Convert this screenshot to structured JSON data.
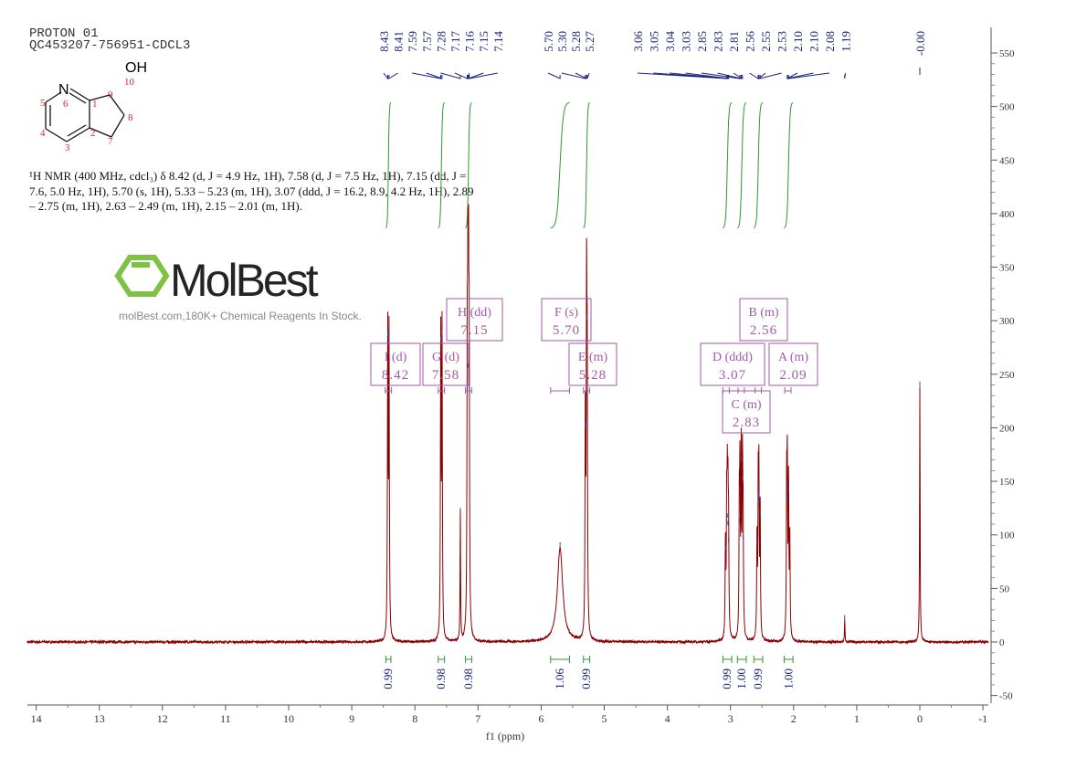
{
  "header": {
    "line1": "PROTON 01",
    "line2": "QC453207-756951-CDCL3"
  },
  "structure": {
    "atoms": [
      {
        "symbol": "N",
        "num": "6"
      },
      {
        "symbol": "",
        "num": "1"
      },
      {
        "symbol": "",
        "num": "2"
      },
      {
        "symbol": "",
        "num": "3"
      },
      {
        "symbol": "",
        "num": "4"
      },
      {
        "symbol": "",
        "num": "5"
      },
      {
        "symbol": "",
        "num": "7"
      },
      {
        "symbol": "",
        "num": "8"
      },
      {
        "symbol": "",
        "num": "9"
      },
      {
        "symbol": "OH",
        "num": "10"
      }
    ]
  },
  "description": {
    "lines": [
      "¹H NMR (400 MHz, cdcl₃) δ 8.42 (d, J = 4.9 Hz, 1H), 7.58 (d, J = 7.5 Hz, 1H), 7.15 (dd, J =",
      "7.6, 5.0 Hz, 1H), 5.70 (s, 1H), 5.33 – 5.23 (m, 1H), 3.07 (ddd, J = 16.2, 8.9, 4.2 Hz, 1H), 2.89",
      "– 2.75 (m, 1H), 2.63 – 2.49 (m, 1H), 2.15 – 2.01 (m, 1H)."
    ]
  },
  "watermark": {
    "brand": "MolBest",
    "tagline": "molBest.com,180K+ Chemical Reagents In Stock.",
    "color": "#7dc242"
  },
  "colors": {
    "spectrum": "#8b0000",
    "integral": "#2e9a2e",
    "peak_label": "#1a237e",
    "multiplet_box": "#a05aa8"
  },
  "chart_data": {
    "type": "line",
    "xlabel": "f1 (ppm)",
    "xlim": [
      14.1,
      -1.05
    ],
    "ylim": [
      -50,
      560
    ],
    "x_ticks": [
      "14",
      "13",
      "12",
      "11",
      "10",
      "9",
      "8",
      "7",
      "6",
      "5",
      "4",
      "3",
      "2",
      "1",
      "0",
      "-1"
    ],
    "y_ticks": [
      "550",
      "500",
      "450",
      "400",
      "350",
      "300",
      "250",
      "200",
      "150",
      "100",
      "50",
      "0",
      "-50"
    ],
    "peak_labels": [
      [
        "8.43",
        "8.41",
        "7.59",
        "7.57",
        "7.28",
        "7.17",
        "7.16",
        "7.15",
        "7.14"
      ],
      [
        "5.70",
        "5.30",
        "5.28",
        "5.27"
      ],
      [
        "3.06",
        "3.05",
        "3.04",
        "3.03",
        "2.85",
        "2.83",
        "2.81",
        "2.56",
        "2.55",
        "2.53",
        "2.10",
        "2.10",
        "2.08",
        "1.19"
      ],
      [
        "-0.00"
      ]
    ],
    "peaks": [
      {
        "ppm": 8.43,
        "height": 285,
        "width": 0.006
      },
      {
        "ppm": 8.41,
        "height": 280,
        "width": 0.006
      },
      {
        "ppm": 7.59,
        "height": 280,
        "width": 0.006
      },
      {
        "ppm": 7.57,
        "height": 286,
        "width": 0.006
      },
      {
        "ppm": 7.28,
        "height": 120,
        "width": 0.005
      },
      {
        "ppm": 7.17,
        "height": 235,
        "width": 0.006
      },
      {
        "ppm": 7.16,
        "height": 255,
        "width": 0.006
      },
      {
        "ppm": 7.15,
        "height": 258,
        "width": 0.006
      },
      {
        "ppm": 7.14,
        "height": 238,
        "width": 0.006
      },
      {
        "ppm": 5.7,
        "height": 88,
        "width": 0.05
      },
      {
        "ppm": 5.3,
        "height": 200,
        "width": 0.006
      },
      {
        "ppm": 5.28,
        "height": 300,
        "width": 0.006
      },
      {
        "ppm": 5.27,
        "height": 225,
        "width": 0.006
      },
      {
        "ppm": 3.08,
        "height": 85,
        "width": 0.006
      },
      {
        "ppm": 3.06,
        "height": 110,
        "width": 0.006
      },
      {
        "ppm": 3.05,
        "height": 115,
        "width": 0.006
      },
      {
        "ppm": 3.04,
        "height": 108,
        "width": 0.006
      },
      {
        "ppm": 3.03,
        "height": 92,
        "width": 0.006
      },
      {
        "ppm": 2.86,
        "height": 110,
        "width": 0.006
      },
      {
        "ppm": 2.85,
        "height": 140,
        "width": 0.006
      },
      {
        "ppm": 2.83,
        "height": 168,
        "width": 0.006
      },
      {
        "ppm": 2.81,
        "height": 150,
        "width": 0.006
      },
      {
        "ppm": 2.8,
        "height": 95,
        "width": 0.006
      },
      {
        "ppm": 2.58,
        "height": 90,
        "width": 0.006
      },
      {
        "ppm": 2.56,
        "height": 130,
        "width": 0.006
      },
      {
        "ppm": 2.55,
        "height": 135,
        "width": 0.006
      },
      {
        "ppm": 2.53,
        "height": 118,
        "width": 0.006
      },
      {
        "ppm": 2.11,
        "height": 130,
        "width": 0.006
      },
      {
        "ppm": 2.1,
        "height": 145,
        "width": 0.006
      },
      {
        "ppm": 2.08,
        "height": 140,
        "width": 0.006
      },
      {
        "ppm": 2.06,
        "height": 90,
        "width": 0.006
      },
      {
        "ppm": 1.19,
        "height": 20,
        "width": 0.005
      },
      {
        "ppm": 0.0,
        "height": 238,
        "width": 0.005
      }
    ],
    "integrals": [
      {
        "from": 8.46,
        "to": 8.38,
        "value": "0.99"
      },
      {
        "from": 7.63,
        "to": 7.53,
        "value": "0.98"
      },
      {
        "from": 7.2,
        "to": 7.1,
        "value": "0.98"
      },
      {
        "from": 5.85,
        "to": 5.55,
        "value": "1.06"
      },
      {
        "from": 5.33,
        "to": 5.23,
        "value": "0.99"
      },
      {
        "from": 3.12,
        "to": 2.98,
        "value": "0.99"
      },
      {
        "from": 2.89,
        "to": 2.75,
        "value": "1.00"
      },
      {
        "from": 2.63,
        "to": 2.49,
        "value": "0.99"
      },
      {
        "from": 2.15,
        "to": 2.01,
        "value": "1.00"
      }
    ],
    "multiplets": [
      {
        "label": "I",
        "type": "(d)",
        "shift": "8.42"
      },
      {
        "label": "G",
        "type": "(d)",
        "shift": "7.58"
      },
      {
        "label": "H",
        "type": "(dd)",
        "shift": "7.15"
      },
      {
        "label": "F",
        "type": "(s)",
        "shift": "5.70"
      },
      {
        "label": "E",
        "type": "(m)",
        "shift": "5.28"
      },
      {
        "label": "B",
        "type": "(m)",
        "shift": "2.56"
      },
      {
        "label": "D",
        "type": "(ddd)",
        "shift": "3.07"
      },
      {
        "label": "A",
        "type": "(m)",
        "shift": "2.09"
      },
      {
        "label": "C",
        "type": "(m)",
        "shift": "2.83"
      }
    ]
  }
}
